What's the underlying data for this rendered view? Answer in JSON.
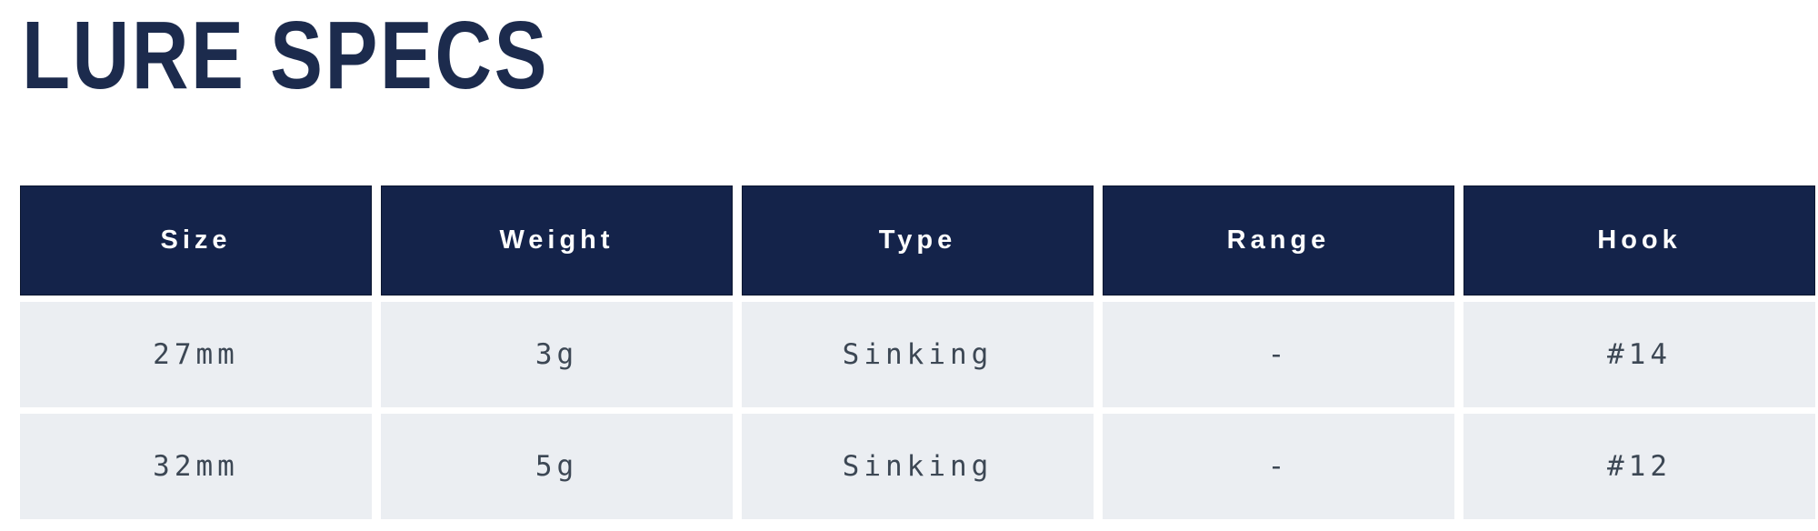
{
  "page": {
    "title": "LURE SPECS"
  },
  "colors": {
    "header_background": "#14234a",
    "header_text": "#ffffff",
    "row_background": "#ebeef2",
    "row_text": "#3c4754",
    "title_text": "#1c2b4d",
    "page_background": "#ffffff"
  },
  "table": {
    "columns": [
      "Size",
      "Weight",
      "Type",
      "Range",
      "Hook"
    ],
    "rows": [
      [
        "27mm",
        "3g",
        "Sinking",
        "-",
        "#14"
      ],
      [
        "32mm",
        "5g",
        "Sinking",
        "-",
        "#12"
      ]
    ]
  }
}
